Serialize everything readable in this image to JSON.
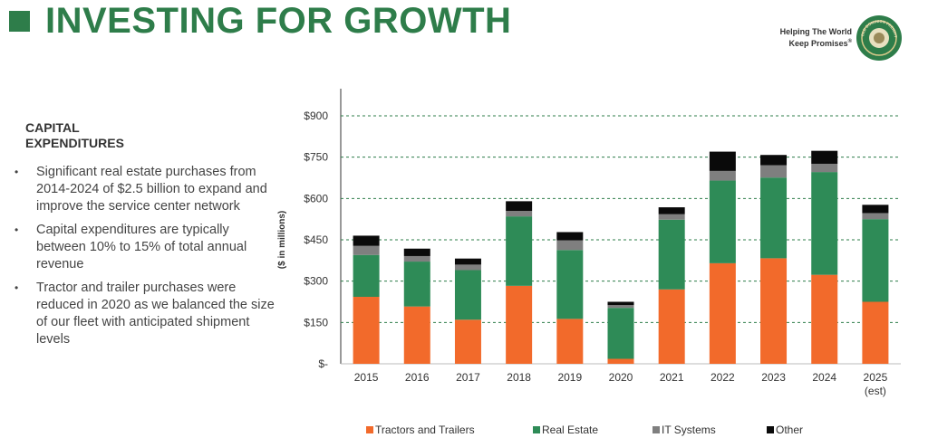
{
  "header": {
    "title": "INVESTING FOR GROWTH",
    "tagline_line1": "Helping The World",
    "tagline_line2": "Keep Promises",
    "tagline_mark": "®",
    "logo_text": "OLD DOMINION FREIGHT LINE"
  },
  "sidebar": {
    "heading_line1": "CAPITAL",
    "heading_line2": "EXPENDITURES",
    "bullets": [
      "Significant real estate purchases from 2014-2024 of $2.5 billion to expand and improve the service center network",
      "Capital expenditures are typically between 10% to 15% of total annual revenue",
      "Tractor and trailer purchases were reduced in 2020 as we balanced the size of our fleet with anticipated shipment levels"
    ],
    "bullet_symbol": "•"
  },
  "colors": {
    "brand_green": "#2e7d4a",
    "tractors": "#f26a2b",
    "real_estate": "#2e8b57",
    "it_systems": "#7f7f7f",
    "other": "#0a0a0a"
  },
  "chart_data": {
    "type": "bar",
    "stacked": true,
    "ylabel": "($ in millions)",
    "ylim": [
      0,
      900
    ],
    "yticks": [
      0,
      150,
      300,
      450,
      600,
      750,
      900
    ],
    "ytick_labels": [
      "$-",
      "$150",
      "$300",
      "$450",
      "$600",
      "$750",
      "$900"
    ],
    "grid": "dashed horizontal",
    "categories": [
      "2015",
      "2016",
      "2017",
      "2018",
      "2019",
      "2020",
      "2021",
      "2022",
      "2023",
      "2024",
      "2025"
    ],
    "category_sublabels": [
      "",
      "",
      "",
      "",
      "",
      "",
      "",
      "",
      "",
      "",
      "(est)"
    ],
    "series": [
      {
        "name": "Tractors and Trailers",
        "color": "#f26a2b",
        "values": [
          243,
          208,
          160,
          283,
          163,
          18,
          270,
          365,
          383,
          323,
          225
        ]
      },
      {
        "name": "Real Estate",
        "color": "#2e8b57",
        "values": [
          152,
          163,
          180,
          252,
          250,
          185,
          253,
          300,
          293,
          373,
          300
        ]
      },
      {
        "name": "IT Systems",
        "color": "#7f7f7f",
        "values": [
          33,
          20,
          20,
          20,
          35,
          10,
          20,
          35,
          45,
          30,
          22
        ]
      },
      {
        "name": "Other",
        "color": "#0a0a0a",
        "values": [
          37,
          27,
          22,
          35,
          30,
          12,
          25,
          70,
          37,
          47,
          30
        ]
      }
    ],
    "legend_position": "bottom"
  }
}
